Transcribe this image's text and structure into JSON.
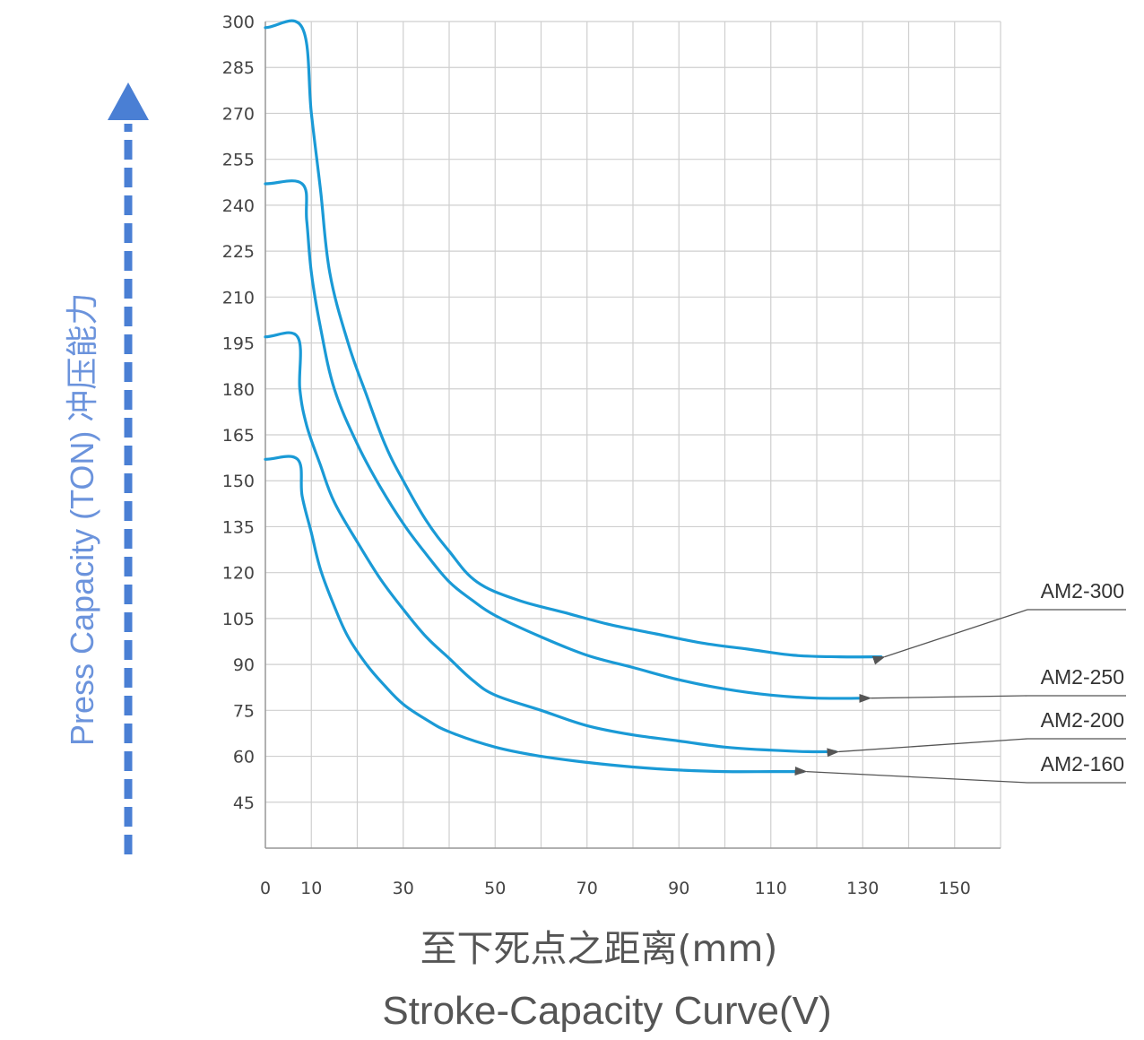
{
  "colors": {
    "curve": "#1a9ad6",
    "grid": "#cfcfcf",
    "axis_label": "#6b93dc",
    "arrow": "#4a7fd4",
    "pointer": "#555555"
  },
  "chart_data": {
    "type": "line",
    "title": "Stroke-Capacity Curve(V)",
    "xlabel_cn": "至下死点之距离(mm)",
    "xlabel": "Stroke-Capacity Curve(V)",
    "ylabel": "Press Capacity (TON)  冲压能力",
    "xlim": [
      0,
      160
    ],
    "ylim": [
      30,
      300
    ],
    "x_ticks": [
      0,
      10,
      30,
      50,
      70,
      90,
      110,
      130,
      150
    ],
    "y_ticks": [
      300,
      285,
      270,
      255,
      240,
      225,
      210,
      195,
      180,
      165,
      150,
      135,
      120,
      105,
      90,
      75,
      60,
      45
    ],
    "grid": true,
    "series": [
      {
        "name": "AM2-300",
        "points": [
          [
            0,
            298
          ],
          [
            8,
            298
          ],
          [
            10,
            270
          ],
          [
            12,
            245
          ],
          [
            14,
            218
          ],
          [
            18,
            195
          ],
          [
            22,
            178
          ],
          [
            26,
            162
          ],
          [
            30,
            150
          ],
          [
            35,
            137
          ],
          [
            40,
            127
          ],
          [
            46,
            117
          ],
          [
            55,
            111
          ],
          [
            65,
            107
          ],
          [
            75,
            103
          ],
          [
            85,
            100
          ],
          [
            95,
            97
          ],
          [
            105,
            95
          ],
          [
            115,
            93
          ],
          [
            125,
            92.5
          ],
          [
            134,
            92.5
          ]
        ]
      },
      {
        "name": "AM2-250",
        "points": [
          [
            0,
            247
          ],
          [
            8,
            247
          ],
          [
            9,
            235
          ],
          [
            10,
            218
          ],
          [
            12,
            200
          ],
          [
            15,
            180
          ],
          [
            20,
            162
          ],
          [
            25,
            148
          ],
          [
            30,
            136
          ],
          [
            35,
            126
          ],
          [
            40,
            117
          ],
          [
            45,
            111
          ],
          [
            50,
            106
          ],
          [
            60,
            99
          ],
          [
            70,
            93
          ],
          [
            80,
            89
          ],
          [
            90,
            85
          ],
          [
            100,
            82
          ],
          [
            110,
            80
          ],
          [
            120,
            79
          ],
          [
            131,
            79
          ]
        ]
      },
      {
        "name": "AM2-200",
        "points": [
          [
            0,
            197
          ],
          [
            7,
            197
          ],
          [
            7.5,
            180
          ],
          [
            9,
            168
          ],
          [
            12,
            155
          ],
          [
            15,
            143
          ],
          [
            20,
            130
          ],
          [
            25,
            118
          ],
          [
            30,
            108
          ],
          [
            35,
            99
          ],
          [
            40,
            92
          ],
          [
            45,
            85
          ],
          [
            50,
            80
          ],
          [
            60,
            75
          ],
          [
            70,
            70
          ],
          [
            80,
            67
          ],
          [
            90,
            65
          ],
          [
            100,
            63
          ],
          [
            110,
            62
          ],
          [
            118,
            61.5
          ],
          [
            124,
            61.5
          ]
        ]
      },
      {
        "name": "AM2-160",
        "points": [
          [
            0,
            157
          ],
          [
            7,
            157
          ],
          [
            8,
            145
          ],
          [
            10,
            133
          ],
          [
            12,
            121
          ],
          [
            15,
            109
          ],
          [
            18,
            99
          ],
          [
            22,
            90
          ],
          [
            26,
            83
          ],
          [
            30,
            77
          ],
          [
            35,
            72
          ],
          [
            40,
            68
          ],
          [
            50,
            63
          ],
          [
            60,
            60
          ],
          [
            70,
            58
          ],
          [
            80,
            56.5
          ],
          [
            90,
            55.5
          ],
          [
            100,
            55
          ],
          [
            110,
            55
          ],
          [
            117,
            55
          ]
        ]
      }
    ],
    "series_labels": [
      "AM2-300",
      "AM2-250",
      "AM2-200",
      "AM2-160"
    ]
  }
}
